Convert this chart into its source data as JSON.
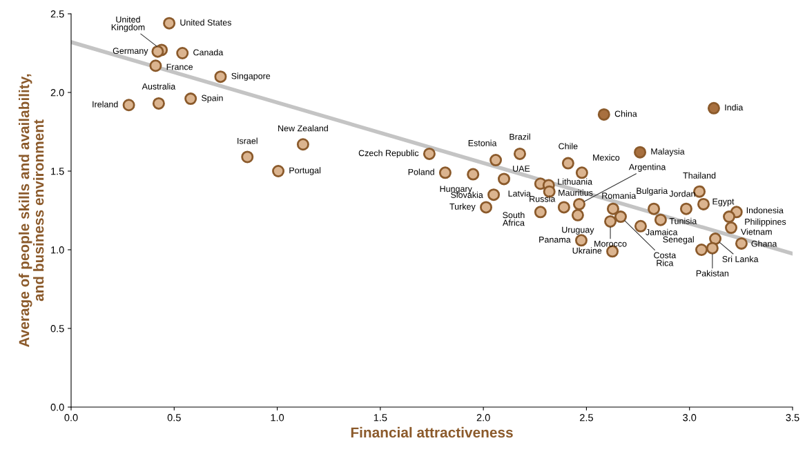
{
  "chart_data": {
    "type": "scatter",
    "xlabel": "Financial attractiveness",
    "ylabel": "Average of people skills and availability,\nand business environment",
    "xlim": [
      0,
      3.5
    ],
    "xticks": [
      {
        "value": 0,
        "label": "0.0"
      },
      0.5,
      {
        "value": 1,
        "label": "1.0"
      },
      1.5,
      {
        "value": 2,
        "label": "2.0"
      },
      2.5,
      {
        "value": 3,
        "label": "3.0"
      },
      3.5
    ],
    "ylim": [
      0,
      2.5
    ],
    "yticks": [
      {
        "value": 0,
        "label": "0.0"
      },
      0.5,
      {
        "value": 1,
        "label": "1.0"
      },
      1.5,
      {
        "value": 2,
        "label": "2.0"
      },
      2.5
    ],
    "grid": false,
    "legend": false,
    "series": [
      {
        "type": "line",
        "color": "#c4c4c4",
        "x": [
          0,
          3.5
        ],
        "values": [
          2.32,
          0.975
        ]
      },
      {
        "marker": "circle",
        "color": "#dbb48f",
        "x": [
          0.476,
          0.439,
          0.42,
          0.54,
          0.41,
          0.725,
          0.425,
          0.28,
          0.58,
          1.125,
          0.855,
          1.005,
          2.585,
          3.118,
          2.76,
          1.738,
          1.815,
          1.95,
          2.05,
          2.013,
          2.06,
          2.1,
          2.177,
          2.277,
          2.317,
          2.32,
          2.277,
          2.411,
          2.478,
          2.391,
          2.465,
          2.458,
          2.475,
          2.626,
          2.629,
          2.616,
          2.666,
          2.763,
          2.827,
          2.86,
          2.984,
          3.048,
          3.068,
          3.228,
          3.192,
          3.202,
          3.058,
          3.125,
          3.111,
          3.252
        ],
        "values": [
          2.44,
          2.27,
          2.26,
          2.25,
          2.17,
          2.1,
          1.93,
          1.92,
          1.96,
          1.67,
          1.59,
          1.5,
          1.86,
          1.9,
          1.62,
          1.61,
          1.49,
          1.48,
          1.35,
          1.27,
          1.57,
          1.45,
          1.61,
          1.42,
          1.41,
          1.37,
          1.24,
          1.55,
          1.49,
          1.27,
          1.29,
          1.22,
          1.06,
          0.99,
          1.26,
          1.18,
          1.21,
          1.15,
          1.26,
          1.19,
          1.26,
          1.37,
          1.29,
          1.24,
          1.21,
          1.14,
          1.0,
          1.07,
          1.01,
          1.04
        ],
        "colors": [
          "#dbb48f",
          "#dbb48f",
          "#dbb48f",
          "#dbb48f",
          "#dbb48f",
          "#dbb48f",
          "#dbb48f",
          "#dbb48f",
          "#dbb48f",
          "#dbb48f",
          "#dbb48f",
          "#dbb48f",
          "#a8703f",
          "#a8703f",
          "#a8703f",
          "#dbb48f",
          "#dbb48f",
          "#dbb48f",
          "#dbb48f",
          "#dbb48f",
          "#dbb48f",
          "#dbb48f",
          "#dbb48f",
          "#dbb48f",
          "#dbb48f",
          "#dbb48f",
          "#dbb48f",
          "#dbb48f",
          "#dbb48f",
          "#dbb48f",
          "#dbb48f",
          "#dbb48f",
          "#dbb48f",
          "#dbb48f",
          "#dbb48f",
          "#dbb48f",
          "#dbb48f",
          "#dbb48f",
          "#dbb48f",
          "#dbb48f",
          "#dbb48f",
          "#dbb48f",
          "#dbb48f",
          "#dbb48f",
          "#dbb48f",
          "#dbb48f",
          "#dbb48f",
          "#dbb48f",
          "#dbb48f",
          "#dbb48f"
        ]
      }
    ],
    "annotations": [
      {
        "text": "United States",
        "x": 0.476,
        "y": 2.44
      },
      {
        "text": "United\nKingdom",
        "x": 0.439,
        "y": 2.27
      },
      {
        "text": "Germany",
        "x": 0.42,
        "y": 2.26
      },
      {
        "text": "Canada",
        "x": 0.54,
        "y": 2.25
      },
      {
        "text": "France",
        "x": 0.41,
        "y": 2.17
      },
      {
        "text": "Singapore",
        "x": 0.725,
        "y": 2.1
      },
      {
        "text": "Australia",
        "x": 0.425,
        "y": 1.93
      },
      {
        "text": "Ireland",
        "x": 0.28,
        "y": 1.92
      },
      {
        "text": "Spain",
        "x": 0.58,
        "y": 1.96
      },
      {
        "text": "New Zealand",
        "x": 1.125,
        "y": 1.67
      },
      {
        "text": "Israel",
        "x": 0.855,
        "y": 1.59
      },
      {
        "text": "Portugal",
        "x": 1.005,
        "y": 1.5
      },
      {
        "text": "China",
        "x": 2.585,
        "y": 1.86
      },
      {
        "text": "India",
        "x": 3.118,
        "y": 1.9
      },
      {
        "text": "Malaysia",
        "x": 2.76,
        "y": 1.62
      },
      {
        "text": "Czech Republic",
        "x": 1.738,
        "y": 1.61
      },
      {
        "text": "Poland",
        "x": 1.815,
        "y": 1.49
      },
      {
        "text": "Hungary",
        "x": 1.95,
        "y": 1.48
      },
      {
        "text": "Slovakia",
        "x": 2.05,
        "y": 1.35
      },
      {
        "text": "Turkey",
        "x": 2.013,
        "y": 1.27
      },
      {
        "text": "Estonia",
        "x": 2.06,
        "y": 1.57
      },
      {
        "text": "UAE",
        "x": 2.1,
        "y": 1.45
      },
      {
        "text": "Brazil",
        "x": 2.177,
        "y": 1.61
      },
      {
        "text": "Latvia",
        "x": 2.277,
        "y": 1.42
      },
      {
        "text": "Lithuania",
        "x": 2.317,
        "y": 1.41
      },
      {
        "text": "Mauritius",
        "x": 2.32,
        "y": 1.37
      },
      {
        "text": "South\nAfrica",
        "x": 2.277,
        "y": 1.24
      },
      {
        "text": "Chile",
        "x": 2.411,
        "y": 1.55
      },
      {
        "text": "Mexico",
        "x": 2.478,
        "y": 1.49
      },
      {
        "text": "Russia",
        "x": 2.391,
        "y": 1.27
      },
      {
        "text": "Argentina",
        "x": 2.465,
        "y": 1.29
      },
      {
        "text": "Uruguay",
        "x": 2.458,
        "y": 1.22
      },
      {
        "text": "Panama",
        "x": 2.475,
        "y": 1.06
      },
      {
        "text": "Ukraine",
        "x": 2.626,
        "y": 0.99
      },
      {
        "text": "Romania",
        "x": 2.629,
        "y": 1.26
      },
      {
        "text": "Morocco",
        "x": 2.616,
        "y": 1.18
      },
      {
        "text": "Costa\nRica",
        "x": 2.666,
        "y": 1.21
      },
      {
        "text": "Jamaica",
        "x": 2.763,
        "y": 1.15
      },
      {
        "text": "Bulgaria",
        "x": 2.827,
        "y": 1.26
      },
      {
        "text": "Tunisia",
        "x": 2.86,
        "y": 1.19
      },
      {
        "text": "Jordan",
        "x": 2.984,
        "y": 1.26
      },
      {
        "text": "Thailand",
        "x": 3.048,
        "y": 1.37
      },
      {
        "text": "Egypt",
        "x": 3.068,
        "y": 1.29
      },
      {
        "text": "Indonesia",
        "x": 3.228,
        "y": 1.24
      },
      {
        "text": "Philippines",
        "x": 3.192,
        "y": 1.21
      },
      {
        "text": "Vietnam",
        "x": 3.202,
        "y": 1.14
      },
      {
        "text": "Senegal",
        "x": 3.058,
        "y": 1.0
      },
      {
        "text": "Sri Lanka",
        "x": 3.125,
        "y": 1.07
      },
      {
        "text": "Pakistan",
        "x": 3.111,
        "y": 1.01
      },
      {
        "text": "Ghana",
        "x": 3.252,
        "y": 1.04
      }
    ]
  }
}
